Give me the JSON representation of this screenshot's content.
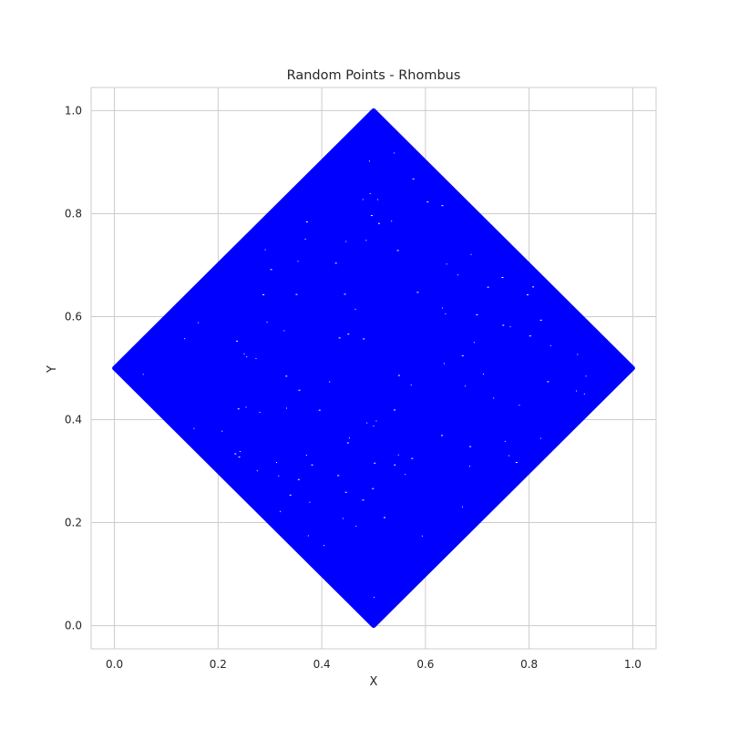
{
  "chart_data": {
    "type": "scatter",
    "title": "Random Points - Rhombus",
    "xlabel": "X",
    "ylabel": "Y",
    "xlim": [
      -0.045,
      1.045
    ],
    "ylim": [
      -0.045,
      1.045
    ],
    "xticks": [
      0.0,
      0.2,
      0.4,
      0.6,
      0.8,
      1.0
    ],
    "yticks": [
      0.0,
      0.2,
      0.4,
      0.6,
      0.8,
      1.0
    ],
    "xtick_labels": [
      "0.0",
      "0.2",
      "0.4",
      "0.6",
      "0.8",
      "1.0"
    ],
    "ytick_labels": [
      "0.0",
      "0.2",
      "0.4",
      "0.6",
      "0.8",
      "1.0"
    ],
    "grid": true,
    "series": [
      {
        "color": "#0000ff",
        "marker": "point",
        "region": "rhombus",
        "vertices": [
          [
            0.5,
            1.0
          ],
          [
            1.0,
            0.5
          ],
          [
            0.5,
            0.0
          ],
          [
            0.0,
            0.5
          ]
        ],
        "points": [
          [
            0.5,
            1.0
          ],
          [
            1.0,
            0.5
          ],
          [
            0.5,
            0.0
          ],
          [
            0.0,
            0.5
          ],
          [
            0.25,
            0.75
          ],
          [
            0.75,
            0.75
          ],
          [
            0.75,
            0.25
          ],
          [
            0.25,
            0.25
          ],
          [
            0.5,
            0.5
          ],
          [
            0.4,
            0.6
          ],
          [
            0.6,
            0.4
          ],
          [
            0.3,
            0.5
          ],
          [
            0.7,
            0.5
          ],
          [
            0.5,
            0.3
          ],
          [
            0.5,
            0.7
          ],
          [
            0.45,
            0.2
          ],
          [
            0.55,
            0.8
          ],
          [
            0.2,
            0.45
          ],
          [
            0.8,
            0.55
          ]
        ]
      }
    ]
  },
  "colors": {
    "background": "#ffffff",
    "grid": "#cccccc",
    "points": "#0000ff",
    "text": "#262626"
  }
}
